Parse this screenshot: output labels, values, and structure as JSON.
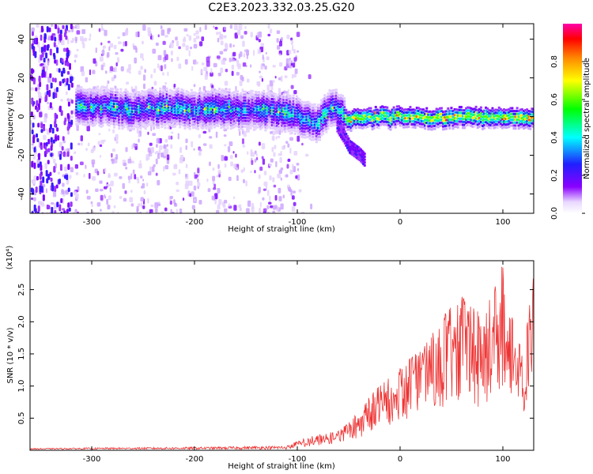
{
  "title": "C2E3.2023.332.03.25.G20",
  "chart_data": [
    {
      "type": "heatmap",
      "xlabel": "Height of straight line (km)",
      "ylabel": "Frequency (Hz)",
      "xlim": [
        -360,
        130
      ],
      "ylim": [
        -50,
        48
      ],
      "xticks": [
        -300,
        -200,
        -100,
        0,
        100
      ],
      "yticks": [
        -40,
        -20,
        0,
        20,
        40
      ],
      "colorbar": {
        "label": "Normalized spectral amplitude",
        "range": [
          0.0,
          1.0
        ],
        "ticks": [
          0.0,
          0.2,
          0.4,
          0.6,
          0.8
        ],
        "tick_labels": [
          "0.0",
          "0.2",
          "0.4",
          "0.6",
          "0.8"
        ],
        "colormap": [
          "#ffffff",
          "#8a00ff",
          "#2020ff",
          "#00ffff",
          "#00ff00",
          "#ffff00",
          "#ff8800",
          "#ff0000",
          "#ff00aa"
        ]
      },
      "trace": {
        "x": [
          -315,
          -300,
          -280,
          -260,
          -240,
          -220,
          -200,
          -180,
          -160,
          -140,
          -120,
          -100,
          -90,
          -80,
          -75,
          -70,
          -65,
          -60,
          -55,
          -50,
          -45,
          -40,
          -30,
          -20,
          -10,
          0,
          20,
          40,
          60,
          80,
          100,
          120,
          130
        ],
        "y": [
          6,
          6,
          5,
          4,
          5,
          5,
          4,
          5,
          4,
          4,
          3,
          1,
          -1,
          -3,
          1,
          5,
          6,
          3,
          0,
          -1,
          0,
          0,
          0,
          1,
          0,
          1,
          0,
          0,
          1,
          0,
          0,
          0,
          0
        ]
      },
      "branch": {
        "x": [
          -62,
          -55,
          -50,
          -45,
          -40,
          -35
        ],
        "y": [
          -4,
          -10,
          -15,
          -17,
          -19,
          -22
        ]
      },
      "grid": false
    },
    {
      "type": "line",
      "xlabel": "Height of straight line (km)",
      "ylabel": "SNR (10 * v/v)",
      "y_exponent_label": "(x10⁴)",
      "xlim": [
        -360,
        130
      ],
      "ylim": [
        0,
        2.95
      ],
      "xticks": [
        -300,
        -200,
        -100,
        0,
        100
      ],
      "yticks": [
        0.5,
        1.0,
        1.5,
        2.0,
        2.5
      ],
      "ytick_labels": [
        "0.5",
        "1.0",
        "1.5",
        "2.0",
        "2.5"
      ],
      "color": "#ee3333",
      "envelope": {
        "x": [
          -360,
          -300,
          -200,
          -110,
          -100,
          -80,
          -60,
          -50,
          -40,
          -30,
          -20,
          -10,
          0,
          10,
          20,
          30,
          40,
          50,
          60,
          70,
          80,
          90,
          100,
          110,
          120,
          130
        ],
        "y": [
          0.03,
          0.04,
          0.05,
          0.07,
          0.15,
          0.25,
          0.3,
          0.45,
          0.6,
          0.85,
          1.0,
          1.15,
          1.3,
          1.45,
          1.55,
          1.85,
          2.0,
          2.35,
          2.4,
          2.25,
          2.1,
          2.45,
          2.9,
          2.0,
          1.5,
          2.85
        ]
      },
      "grid": false
    }
  ]
}
